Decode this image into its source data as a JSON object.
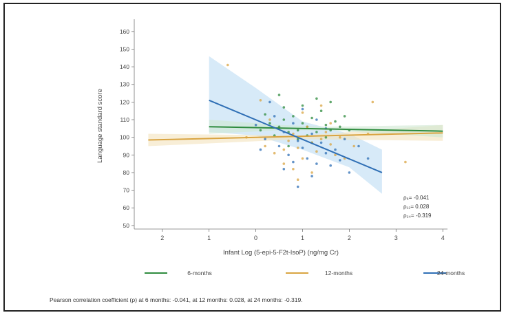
{
  "chart_data": {
    "type": "scatter",
    "title": "",
    "xlabel": "Infant Log (5-epi-5-F2t-IsoP) (ng/mg Cr)",
    "ylabel": "Language standard score",
    "xlim": [
      -2.6,
      4.1
    ],
    "ylim": [
      48,
      165
    ],
    "x_ticks": [
      -2,
      -1,
      0,
      1,
      2,
      3,
      4
    ],
    "x_tick_labels": [
      "2",
      "1",
      "0",
      "1",
      "2",
      "3",
      "4"
    ],
    "y_ticks": [
      50,
      60,
      70,
      80,
      90,
      100,
      110,
      120,
      130,
      140,
      150,
      160
    ],
    "y_tick_labels": [
      "50",
      "60",
      "70",
      "80",
      "90",
      "100",
      "110",
      "120",
      "130",
      "140",
      "150",
      "160"
    ],
    "grid": false,
    "legend_position": "bottom",
    "series": [
      {
        "name": "6-months",
        "color": "#2e8b3e",
        "fit_line": {
          "x": [
            -1.0,
            4.0
          ],
          "y": [
            106,
            103.5
          ]
        },
        "ci_band": {
          "x": [
            -1.0,
            0.5,
            1.5,
            4.0
          ],
          "lower": [
            102,
            104,
            104,
            100
          ],
          "upper": [
            110,
            107,
            106,
            107
          ]
        },
        "points": [
          [
            0.1,
            104
          ],
          [
            0.3,
            108
          ],
          [
            0.5,
            106
          ],
          [
            0.6,
            110
          ],
          [
            0.7,
            103
          ],
          [
            0.8,
            112
          ],
          [
            0.9,
            104
          ],
          [
            1.0,
            108
          ],
          [
            1.1,
            106
          ],
          [
            1.2,
            111
          ],
          [
            1.3,
            103
          ],
          [
            1.4,
            115
          ],
          [
            1.5,
            107
          ],
          [
            1.6,
            104
          ],
          [
            1.7,
            109
          ],
          [
            1.8,
            106
          ],
          [
            0.4,
            101
          ],
          [
            0.6,
            117
          ],
          [
            0.9,
            99
          ],
          [
            1.3,
            122
          ],
          [
            1.5,
            100
          ],
          [
            1.9,
            112
          ],
          [
            0.2,
            113
          ],
          [
            1.0,
            118
          ],
          [
            1.2,
            97
          ],
          [
            0.7,
            95
          ],
          [
            1.6,
            120
          ],
          [
            2.0,
            104
          ],
          [
            0.5,
            124
          ],
          [
            1.1,
            101
          ]
        ]
      },
      {
        "name": "12-months",
        "color": "#d9a441",
        "fit_line": {
          "x": [
            -2.3,
            4.0
          ],
          "y": [
            98.5,
            102.5
          ]
        },
        "ci_band": {
          "x": [
            -2.3,
            1.0,
            4.0
          ],
          "lower": [
            95,
            99,
            98
          ],
          "upper": [
            102,
            101,
            107
          ]
        },
        "points": [
          [
            -0.2,
            100
          ],
          [
            0.2,
            95
          ],
          [
            0.4,
            91
          ],
          [
            0.5,
            105
          ],
          [
            0.6,
            85
          ],
          [
            0.7,
            98
          ],
          [
            0.8,
            102
          ],
          [
            0.9,
            94
          ],
          [
            1.0,
            88
          ],
          [
            1.1,
            106
          ],
          [
            1.2,
            97
          ],
          [
            1.3,
            92
          ],
          [
            1.4,
            99
          ],
          [
            1.5,
            103
          ],
          [
            1.6,
            96
          ],
          [
            1.7,
            90
          ],
          [
            1.8,
            100
          ],
          [
            0.3,
            110
          ],
          [
            0.8,
            82
          ],
          [
            1.0,
            114
          ],
          [
            1.2,
            80
          ],
          [
            1.6,
            108
          ],
          [
            2.1,
            95
          ],
          [
            2.5,
            120
          ],
          [
            3.2,
            86
          ],
          [
            0.1,
            121
          ],
          [
            -0.6,
            141
          ],
          [
            0.9,
            76
          ],
          [
            1.4,
            118
          ],
          [
            2.4,
            102
          ],
          [
            0.6,
            93
          ],
          [
            1.9,
            88
          ]
        ]
      },
      {
        "name": "24-months",
        "color": "#2f6fb5",
        "fit_line": {
          "x": [
            -1.0,
            2.7
          ],
          "y": [
            121,
            80
          ]
        },
        "ci_band": {
          "x": [
            -1.0,
            0.0,
            1.0,
            2.0,
            2.7
          ],
          "lower": [
            103,
            101,
            93,
            83,
            68
          ],
          "upper": [
            146,
            128,
            109,
            102,
            93
          ]
        },
        "points": [
          [
            0.0,
            107
          ],
          [
            0.2,
            99
          ],
          [
            0.4,
            112
          ],
          [
            0.5,
            95
          ],
          [
            0.6,
            103
          ],
          [
            0.7,
            90
          ],
          [
            0.8,
            108
          ],
          [
            0.9,
            98
          ],
          [
            1.0,
            94
          ],
          [
            1.1,
            88
          ],
          [
            1.2,
            102
          ],
          [
            1.3,
            85
          ],
          [
            1.4,
            97
          ],
          [
            1.5,
            91
          ],
          [
            1.6,
            84
          ],
          [
            1.7,
            93
          ],
          [
            1.8,
            87
          ],
          [
            2.0,
            80
          ],
          [
            0.3,
            120
          ],
          [
            0.9,
            72
          ],
          [
            1.2,
            78
          ],
          [
            1.5,
            105
          ],
          [
            2.2,
            95
          ],
          [
            0.1,
            93
          ],
          [
            0.6,
            82
          ],
          [
            1.3,
            110
          ],
          [
            2.4,
            88
          ],
          [
            1.0,
            116
          ],
          [
            0.8,
            86
          ],
          [
            1.9,
            99
          ]
        ]
      }
    ],
    "annotations": [
      {
        "text": "ρ₆= -0.041"
      },
      {
        "text": "ρ₁₂= 0.028"
      },
      {
        "text": "ρ₂₄= -0.319"
      }
    ],
    "caption": "Pearson correlation coefficient (ρ) at 6 months: -0.041, at 12 months: 0.028, at 24 months: -0.319."
  }
}
